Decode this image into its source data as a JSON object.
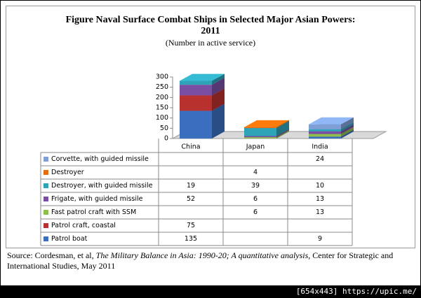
{
  "chart_data": {
    "type": "bar3d_stacked_table",
    "title": "Figure  Naval Surface Combat Ships in Selected Major Asian Powers: 2011",
    "subtitle": "(Number in active service)",
    "categories": [
      "China",
      "Japan",
      "India"
    ],
    "ylim": [
      0,
      300
    ],
    "yticks": [
      0,
      50,
      100,
      150,
      200,
      250,
      300
    ],
    "grid": false,
    "series": [
      {
        "name": "Corvette, with guided missile",
        "color": "#7f9fd6",
        "values": [
          null,
          null,
          24
        ]
      },
      {
        "name": "Destroyer",
        "color": "#e46c0a",
        "values": [
          null,
          4,
          null
        ]
      },
      {
        "name": "Destroyer, with guided missile",
        "color": "#2fa3b8",
        "values": [
          19,
          39,
          10
        ]
      },
      {
        "name": "Frigate, with guided missile",
        "color": "#7a4fa3",
        "values": [
          52,
          6,
          13
        ]
      },
      {
        "name": "Fast patrol craft with SSM",
        "color": "#8fbf4a",
        "values": [
          null,
          6,
          13
        ]
      },
      {
        "name": "Patrol craft, coastal",
        "color": "#b8312f",
        "values": [
          75,
          null,
          null
        ]
      },
      {
        "name": "Patrol boat",
        "color": "#3a6fbf",
        "values": [
          135,
          null,
          9
        ]
      }
    ],
    "source": [
      "Source: Cordesman, et al, ",
      "The Military Balance in Asia: 1990-20; A quantitative analysis",
      ", Center for Strategic and International Studies, May 2011"
    ],
    "watermark": "[654x443] https://upic.me/"
  }
}
